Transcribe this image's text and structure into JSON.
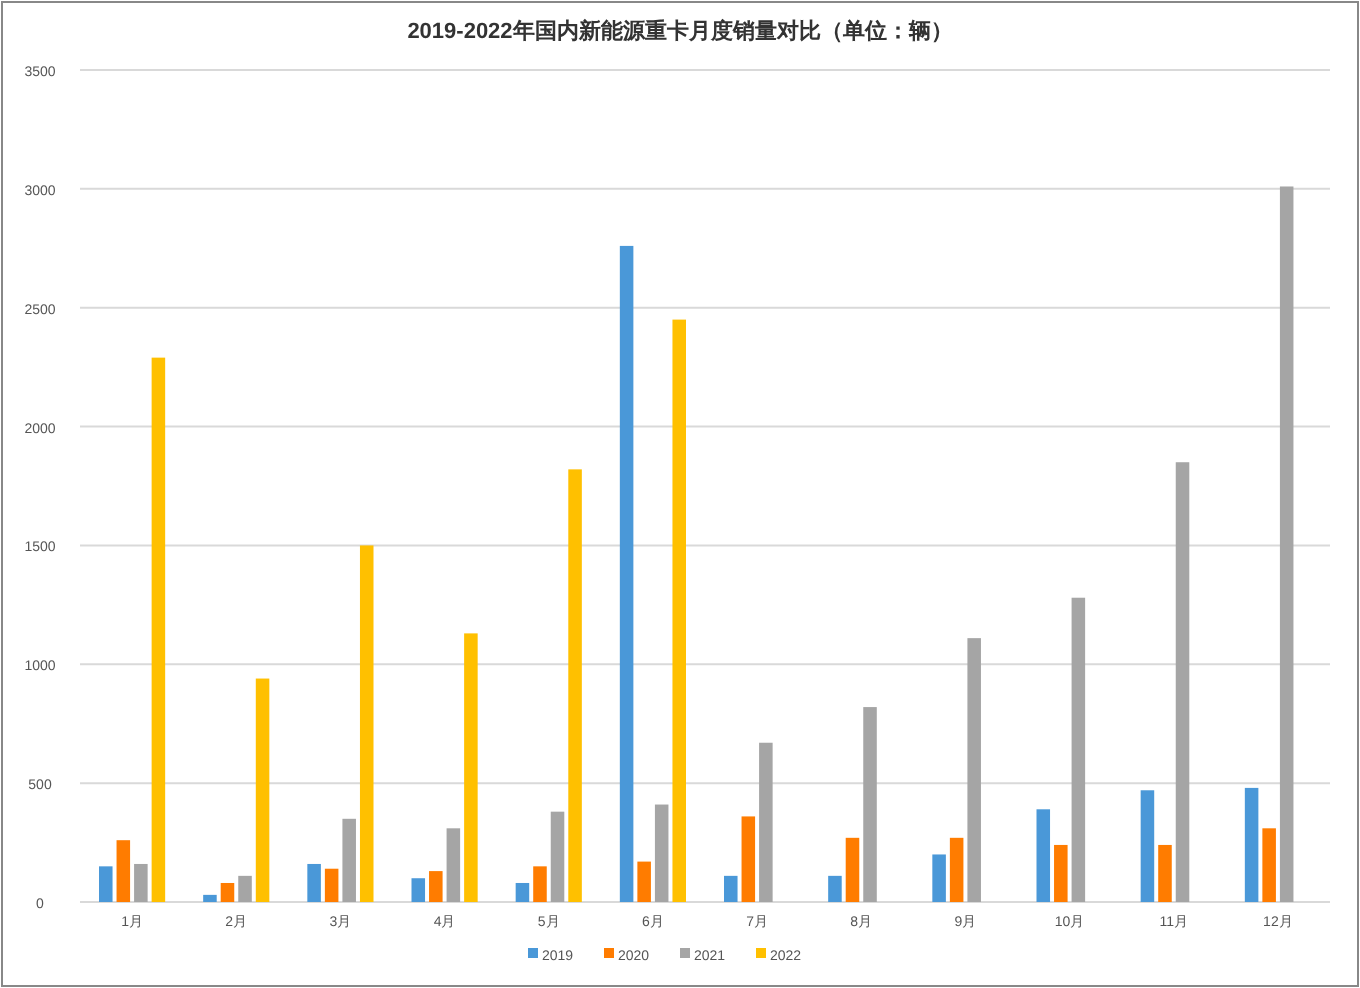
{
  "chart_data": {
    "type": "bar",
    "title": "2019-2022年国内新能源重卡月度销量对比（单位：辆）",
    "categories": [
      "1月",
      "2月",
      "3月",
      "4月",
      "5月",
      "6月",
      "7月",
      "8月",
      "9月",
      "10月",
      "11月",
      "12月"
    ],
    "series": [
      {
        "name": "2019",
        "color": "#4a98d8",
        "values": [
          150,
          30,
          160,
          100,
          80,
          2760,
          110,
          110,
          200,
          390,
          470,
          480
        ]
      },
      {
        "name": "2020",
        "color": "#ff7c00",
        "values": [
          260,
          80,
          140,
          130,
          150,
          170,
          360,
          270,
          270,
          240,
          240,
          310
        ]
      },
      {
        "name": "2021",
        "color": "#a5a5a5",
        "values": [
          160,
          110,
          350,
          310,
          380,
          410,
          670,
          820,
          1110,
          1280,
          1850,
          3010
        ]
      },
      {
        "name": "2022",
        "color": "#ffc000",
        "values": [
          2290,
          940,
          1500,
          1130,
          1820,
          2450,
          null,
          null,
          null,
          null,
          null,
          null
        ]
      }
    ],
    "ylim": [
      0,
      3500
    ],
    "yticks": [
      0,
      500,
      1000,
      1500,
      2000,
      2500,
      3000,
      3500
    ],
    "grid": "y",
    "legend": "bottom"
  }
}
